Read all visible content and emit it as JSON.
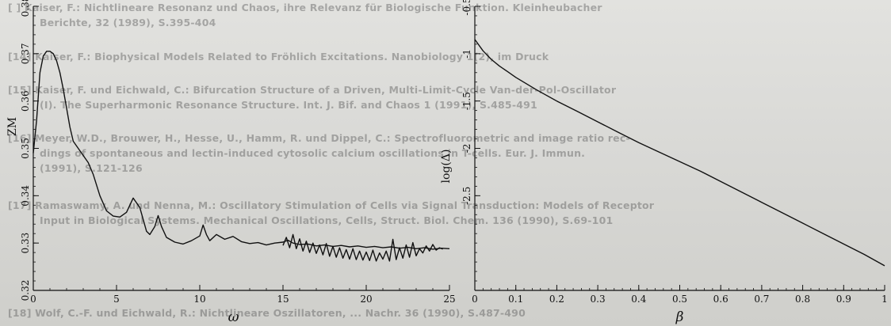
{
  "background_text": [
    "[ ] Kaiser, F.: Nichtlineare Resonanz und Chaos, ihre Relevanz für Biologische Funktion. Kleinheubacher",
    "Berichte, 32 (1989), S.395-404",
    "[14] Kaiser, F.: Biophysical Models Related to Fröhlich Excitations. Nanobiology 1(2), im Druck",
    "[15] Kaiser, F. und Eichwald, C.: Bifurcation Structure of a Driven, Multi-Limit-Cycle Van-der-Pol-Oscillator",
    "(I). The Superharmonic Resonance Structure. Int. J. Bif. and Chaos 1 (1991), S.485-491",
    "[16] Meyer, W.D., Brouwer, H., Hesse, U., Hamm, R. und Dippel, C.: Spectrofluorometric and image ratio rec-",
    "dings of spontaneous and lectin-induced cytosolic calcium oscillations in T-cells. Eur. J. Immun.",
    "(1991), S.121-126",
    "[17] Ramaswamy, A. und Nenna, M.: Oscillatory Stimulation of Cells via Signal Transduction: Models of Receptor",
    "Input in Biological Systems. Mechanical Oscillations, Cells, Struct. Biol. Chem. 136 (1990), S.69-101",
    "[18] Wolf, C.-F. und Eichwald, R.: Nichtlineare Oszillatoren, ... Nachr. 36 (1990), S.487-490"
  ],
  "chart_data": [
    {
      "type": "line",
      "xlabel": "ω",
      "ylabel": "ZM",
      "xlim": [
        0,
        25
      ],
      "ylim": [
        0.32,
        0.38
      ],
      "xticks": [
        "0",
        "5",
        "10",
        "15",
        "20",
        "25"
      ],
      "yticks": [
        "0.32",
        "0.33",
        "0.34",
        "0.35",
        "0.36",
        "0.37",
        "0.38"
      ],
      "grid": false,
      "series": [
        {
          "x": [
            0,
            0.2,
            0.4,
            0.6,
            0.8,
            1.0,
            1.2,
            1.4,
            1.6,
            1.8,
            2.0,
            2.2,
            2.4,
            2.6,
            2.8,
            3.0,
            3.3,
            3.6,
            4.0,
            4.4,
            4.8,
            5.2,
            5.6,
            6.0,
            6.4,
            6.8,
            7.0,
            7.3,
            7.5,
            7.7,
            8.0,
            8.5,
            9.0,
            9.5,
            10.0,
            10.2,
            10.4,
            10.6,
            11.0,
            11.5,
            12.0,
            12.5,
            13.0,
            13.5,
            14.0,
            14.5,
            15.0,
            15.3,
            15.6,
            16.0,
            16.5,
            17.0,
            17.5,
            18.0,
            18.5,
            19.0,
            19.5,
            20.0,
            20.5,
            21.0,
            21.5,
            22.0,
            22.5,
            23.0,
            23.5,
            24.0,
            24.5,
            25.0
          ],
          "values": [
            0.349,
            0.356,
            0.366,
            0.3695,
            0.3705,
            0.3705,
            0.37,
            0.3685,
            0.366,
            0.3625,
            0.3585,
            0.3545,
            0.3515,
            0.3505,
            0.3495,
            0.3485,
            0.347,
            0.3445,
            0.34,
            0.3368,
            0.3357,
            0.3355,
            0.3365,
            0.3395,
            0.3375,
            0.3325,
            0.3318,
            0.3335,
            0.3358,
            0.3335,
            0.3312,
            0.3302,
            0.3298,
            0.3305,
            0.3315,
            0.3338,
            0.3318,
            0.3305,
            0.3318,
            0.3308,
            0.3314,
            0.3303,
            0.3299,
            0.3301,
            0.3296,
            0.33,
            0.3302,
            0.3306,
            0.33,
            0.3297,
            0.3298,
            0.3294,
            0.3296,
            0.3293,
            0.3295,
            0.3292,
            0.3294,
            0.3291,
            0.3293,
            0.329,
            0.3292,
            0.3289,
            0.3291,
            0.3288,
            0.329,
            0.3287,
            0.3289,
            0.3288
          ]
        },
        {
          "x": [
            15.0,
            15.2,
            15.4,
            15.6,
            15.8,
            16.0,
            16.2,
            16.4,
            16.6,
            16.8,
            17.0,
            17.2,
            17.4,
            17.6,
            17.8,
            18.0,
            18.2,
            18.4,
            18.6,
            18.8,
            19.0,
            19.2,
            19.4,
            19.6,
            19.8,
            20.0,
            20.2,
            20.4,
            20.6,
            20.8,
            21.0,
            21.2,
            21.4,
            21.6,
            21.8,
            22.0,
            22.2,
            22.4,
            22.6,
            22.8,
            23.0,
            23.2,
            23.4,
            23.6,
            23.8,
            24.0,
            24.2,
            24.4,
            24.6
          ],
          "values": [
            0.3295,
            0.3312,
            0.329,
            0.3318,
            0.3288,
            0.3309,
            0.3283,
            0.3304,
            0.328,
            0.33,
            0.3278,
            0.3296,
            0.3275,
            0.3299,
            0.3272,
            0.3293,
            0.327,
            0.329,
            0.3268,
            0.3286,
            0.3266,
            0.3288,
            0.3265,
            0.3283,
            0.3264,
            0.3281,
            0.3263,
            0.3285,
            0.3262,
            0.3279,
            0.3266,
            0.3283,
            0.3262,
            0.3308,
            0.3265,
            0.329,
            0.3268,
            0.3296,
            0.327,
            0.3301,
            0.3273,
            0.3288,
            0.3279,
            0.3294,
            0.3283,
            0.3297,
            0.3285,
            0.329,
            0.3287
          ]
        }
      ]
    },
    {
      "type": "line",
      "xlabel": "β",
      "ylabel": "log(Δ)",
      "xlim": [
        0,
        1
      ],
      "ylim": [
        -3.5,
        -0.5
      ],
      "xticks": [
        "0",
        "0.1",
        "0.2",
        "0.3",
        "0.4",
        "0.5",
        "0.6",
        "0.7",
        "0.8",
        "0.9",
        "1"
      ],
      "yticks": [
        "-0.5",
        "-1",
        "-1.5",
        "-2",
        "-2.5"
      ],
      "grid": false,
      "series": [
        {
          "x": [
            0,
            0.02,
            0.04,
            0.06,
            0.08,
            0.1,
            0.15,
            0.2,
            0.25,
            0.3,
            0.35,
            0.4,
            0.45,
            0.5,
            0.55,
            0.6,
            0.65,
            0.7,
            0.75,
            0.8,
            0.85,
            0.9,
            0.95,
            1.0
          ],
          "values": [
            -0.85,
            -0.97,
            -1.06,
            -1.13,
            -1.19,
            -1.25,
            -1.38,
            -1.5,
            -1.61,
            -1.72,
            -1.83,
            -1.94,
            -2.04,
            -2.14,
            -2.24,
            -2.35,
            -2.46,
            -2.57,
            -2.68,
            -2.79,
            -2.9,
            -3.01,
            -3.12,
            -3.24
          ]
        }
      ]
    }
  ]
}
